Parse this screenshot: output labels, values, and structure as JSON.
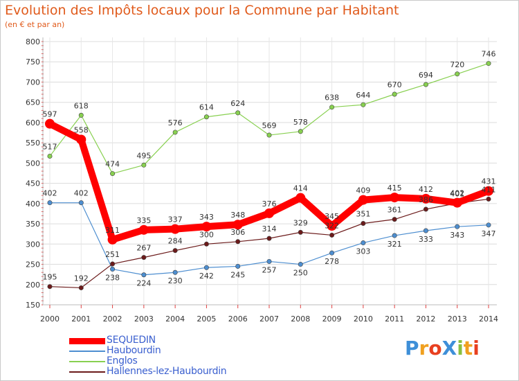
{
  "title": "Evolution des Impôts locaux pour la Commune par Habitant",
  "subtitle": "(en € et par an)",
  "logo_text": "ProXiti",
  "chart_data": {
    "type": "line",
    "title": "Evolution des Impôts locaux pour la Commune par Habitant",
    "subtitle": "(en € et par an)",
    "xlabel": "",
    "ylabel": "",
    "ylim": [
      150,
      800
    ],
    "yticks": [
      150,
      200,
      250,
      300,
      350,
      400,
      450,
      500,
      550,
      600,
      650,
      700,
      750,
      800
    ],
    "grid": true,
    "legend_position": "bottom-left",
    "x": [
      "2000",
      "2001",
      "2002",
      "2003",
      "2004",
      "2005",
      "2006",
      "2007",
      "2008",
      "2009",
      "2010",
      "2011",
      "2012",
      "2013",
      "2014"
    ],
    "series": [
      {
        "name": "SEQUEDIN",
        "color": "#ff0000",
        "values": [
          597,
          558,
          311,
          335,
          337,
          343,
          348,
          376,
          414,
          345,
          409,
          415,
          412,
          402,
          431
        ]
      },
      {
        "name": "Haubourdin",
        "color": "#4d8ed0",
        "values": [
          402,
          402,
          238,
          224,
          230,
          242,
          245,
          257,
          250,
          278,
          303,
          321,
          333,
          343,
          347
        ]
      },
      {
        "name": "Englos",
        "color": "#88d050",
        "values": [
          517,
          618,
          474,
          495,
          576,
          614,
          624,
          569,
          578,
          638,
          644,
          670,
          694,
          720,
          746
        ]
      },
      {
        "name": "Hallennes-lez-Haubourdin",
        "color": "#6b1a1a",
        "values": [
          195,
          192,
          251,
          267,
          284,
          300,
          306,
          314,
          329,
          322,
          351,
          361,
          386,
          401,
          411
        ]
      }
    ]
  }
}
